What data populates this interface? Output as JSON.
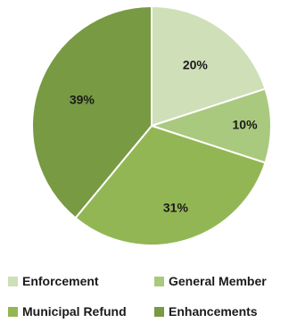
{
  "chart_data": {
    "type": "pie",
    "slices": [
      {
        "label": "Enforcement",
        "value": 20,
        "display": "20%",
        "color": "#cfdfb8"
      },
      {
        "label": "General Member",
        "value": 10,
        "display": "10%",
        "color": "#a9c97e"
      },
      {
        "label": "Municipal Refund",
        "value": 31,
        "display": "31%",
        "color": "#93b654"
      },
      {
        "label": "Enhancements",
        "value": 39,
        "display": "39%",
        "color": "#789a43"
      }
    ],
    "legend_position": "bottom"
  }
}
